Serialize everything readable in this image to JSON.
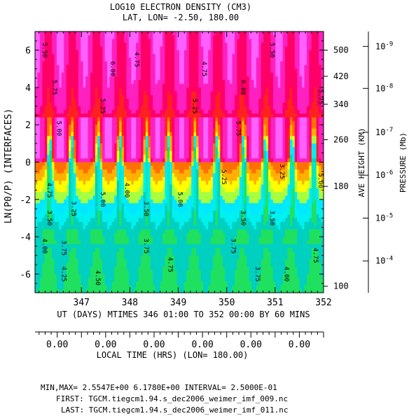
{
  "chart_data": {
    "type": "heatmap",
    "title": "LOG10 ELECTRON DENSITY (CM3)",
    "subtitle": "LAT, LON= -2.50,   180.00",
    "ylabel": "LN(P0/P) (INTERFACES)",
    "ylim": [
      -7,
      7
    ],
    "y_ticks": [
      "6",
      "4",
      "2",
      "0",
      "-2",
      "-4",
      "-6"
    ],
    "y_tick_values": [
      6,
      4,
      2,
      0,
      -2,
      -4,
      -6
    ],
    "x_days": [
      "347",
      "348",
      "349",
      "350",
      "351",
      "352"
    ],
    "xlim_days": [
      346.0417,
      352.0
    ],
    "xlabel": "UT (DAYS) MTIMES 346 01:00 TO 352 00:00 BY    60 MINS",
    "local_time_values": [
      "0.00",
      "0.00",
      "0.00",
      "0.00",
      "0.00",
      "0.00"
    ],
    "local_time_label": "LOCAL TIME (HRS) (LON= 180.00)",
    "height_axis_label": "AVE HEIGHT (KM)",
    "height_ticks": [
      {
        "label": "500",
        "y": 6.0
      },
      {
        "label": "420",
        "y": 4.6
      },
      {
        "label": "340",
        "y": 3.1
      },
      {
        "label": "260",
        "y": 1.2
      },
      {
        "label": "180",
        "y": -1.3
      },
      {
        "label": "100",
        "y": -6.65
      }
    ],
    "pressure_axis_label": "PRESSURE (Mb)",
    "pressure_ticks": [
      {
        "label": "10",
        "exp": "-9",
        "y": 6.2
      },
      {
        "label": "10",
        "exp": "-8",
        "y": 3.95
      },
      {
        "label": "10",
        "exp": "-7",
        "y": 1.6
      },
      {
        "label": "10",
        "exp": "-6",
        "y": -0.7
      },
      {
        "label": "10",
        "exp": "-5",
        "y": -3.0
      },
      {
        "label": "10",
        "exp": "-4",
        "y": -5.3
      }
    ],
    "min": 2.5547,
    "max": 6.178,
    "interval": 0.25,
    "color_levels": [
      {
        "max": 3.25,
        "color": "#00e8c8"
      },
      {
        "max": 3.5,
        "color": "#20e060"
      },
      {
        "max": 3.75,
        "color": "#00d0c0"
      },
      {
        "max": 4.0,
        "color": "#00f0f0"
      },
      {
        "max": 4.25,
        "color": "#00e8ff"
      },
      {
        "max": 4.5,
        "color": "#a8ff40"
      },
      {
        "max": 4.75,
        "color": "#ffff00"
      },
      {
        "max": 5.0,
        "color": "#ffb000"
      },
      {
        "max": 5.25,
        "color": "#ff7000"
      },
      {
        "max": 5.5,
        "color": "#ff2020"
      },
      {
        "max": 5.75,
        "color": "#ff0066"
      },
      {
        "max": 6.0,
        "color": "#ff20c0"
      },
      {
        "max": 6.25,
        "color": "#ff60ff"
      }
    ],
    "contour_labels": [
      {
        "text": "5.50",
        "x": 346.2,
        "y": 6.0
      },
      {
        "text": "5.75",
        "x": 346.4,
        "y": 4.0
      },
      {
        "text": "5.00",
        "x": 346.5,
        "y": 1.8
      },
      {
        "text": "4.75",
        "x": 346.3,
        "y": -1.5
      },
      {
        "text": "3.50",
        "x": 346.3,
        "y": -3.0
      },
      {
        "text": "4.00",
        "x": 346.2,
        "y": -4.5
      },
      {
        "text": "3.75",
        "x": 346.6,
        "y": -4.6
      },
      {
        "text": "4.25",
        "x": 346.6,
        "y": -6.0
      },
      {
        "text": "3.25",
        "x": 346.8,
        "y": -2.5
      },
      {
        "text": "6.00",
        "x": 347.6,
        "y": 5.0
      },
      {
        "text": "5.25",
        "x": 347.4,
        "y": 3.0
      },
      {
        "text": "4.50",
        "x": 347.3,
        "y": -6.2
      },
      {
        "text": "4.75",
        "x": 348.1,
        "y": 5.5
      },
      {
        "text": "3.50",
        "x": 348.3,
        "y": -2.5
      },
      {
        "text": "3.75",
        "x": 348.3,
        "y": -4.5
      },
      {
        "text": "5.00",
        "x": 347.4,
        "y": -2.0
      },
      {
        "text": "4.00",
        "x": 347.9,
        "y": -1.5
      },
      {
        "text": "5.25",
        "x": 349.3,
        "y": 3.0
      },
      {
        "text": "5.00",
        "x": 349.0,
        "y": -2.0
      },
      {
        "text": "4.75",
        "x": 348.8,
        "y": -5.5
      },
      {
        "text": "4.75",
        "x": 349.5,
        "y": 5.0
      },
      {
        "text": "6.00",
        "x": 350.3,
        "y": 4.0
      },
      {
        "text": "5.25",
        "x": 349.9,
        "y": -0.8
      },
      {
        "text": "3.50",
        "x": 350.3,
        "y": -3.0
      },
      {
        "text": "3.75",
        "x": 350.1,
        "y": -4.5
      },
      {
        "text": "5.75",
        "x": 350.2,
        "y": 1.8
      },
      {
        "text": "5.50",
        "x": 350.9,
        "y": 6.0
      },
      {
        "text": "3.25",
        "x": 351.1,
        "y": -0.5
      },
      {
        "text": "3.50",
        "x": 350.9,
        "y": -3.0
      },
      {
        "text": "3.75",
        "x": 350.6,
        "y": -6.0
      },
      {
        "text": "4.00",
        "x": 351.2,
        "y": -6.0
      },
      {
        "text": "5.00",
        "x": 351.9,
        "y": -1.0
      },
      {
        "text": "4.75",
        "x": 351.8,
        "y": -5.0
      },
      {
        "text": "5.75",
        "x": 351.9,
        "y": 3.5
      }
    ]
  },
  "footer": {
    "minmax": "MIN,MAX=  2.5547E+00  6.1780E+00 INTERVAL=  2.5000E-01",
    "first": "FIRST: TGCM.tiegcm1.94.s_dec2006_weimer_imf_009.nc",
    "last": "LAST: TGCM.tiegcm1.94.s_dec2006_weimer_imf_011.nc"
  }
}
